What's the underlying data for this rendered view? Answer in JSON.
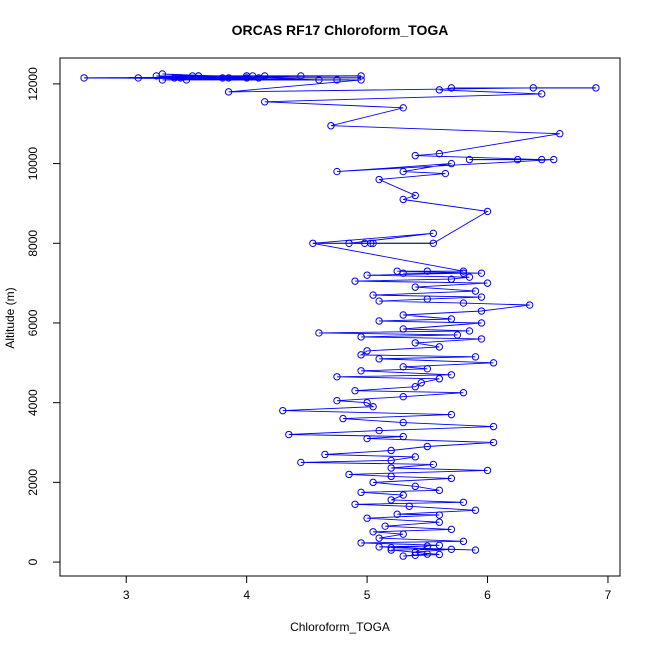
{
  "chart_data": {
    "type": "scatter",
    "title": "ORCAS RF17 Chloroform_TOGA",
    "xlabel": "Chloroform_TOGA",
    "ylabel": "Altitude (m)",
    "xlim": [
      2.45,
      7.1
    ],
    "ylim": [
      -350,
      12650
    ],
    "xticks": [
      3,
      4,
      5,
      6,
      7
    ],
    "yticks": [
      0,
      2000,
      4000,
      6000,
      8000,
      10000,
      12000
    ],
    "series": [
      {
        "name": "Chloroform_TOGA",
        "color": "#0000ff",
        "style": "line+points",
        "x": [
          5.4,
          5.5,
          5.3,
          5.6,
          5.2,
          5.7,
          5.4,
          5.5,
          5.1,
          5.9,
          5.2,
          5.6,
          4.95,
          5.8,
          5.1,
          5.3,
          5.05,
          5.7,
          5.15,
          5.6,
          5.0,
          5.6,
          5.25,
          5.9,
          5.35,
          4.9,
          5.8,
          5.2,
          5.3,
          4.95,
          5.6,
          5.4,
          5.05,
          5.7,
          5.2,
          4.85,
          6.0,
          5.2,
          5.55,
          4.45,
          5.2,
          5.4,
          4.65,
          5.2,
          5.5,
          6.05,
          5.0,
          5.3,
          4.35,
          5.1,
          6.05,
          5.3,
          4.8,
          5.7,
          4.3,
          5.05,
          5.0,
          4.75,
          5.3,
          5.8,
          4.9,
          5.4,
          5.45,
          5.6,
          4.75,
          5.7,
          4.95,
          5.5,
          5.3,
          6.05,
          5.1,
          5.9,
          4.95,
          5.0,
          5.6,
          5.4,
          5.95,
          4.95,
          5.75,
          4.6,
          5.85,
          5.3,
          5.95,
          5.1,
          5.7,
          5.3,
          5.95,
          6.35,
          5.8,
          5.1,
          5.5,
          5.95,
          5.05,
          5.9,
          5.4,
          6.0,
          4.9,
          5.7,
          5.85,
          5.0,
          5.8,
          5.3,
          5.95,
          5.25,
          5.5,
          5.8,
          4.55,
          5.55,
          4.85,
          4.98,
          5.03,
          5.05,
          5.55,
          6.0,
          5.3,
          5.4,
          5.1,
          5.65,
          5.3,
          5.7,
          4.75,
          6.55,
          5.85,
          6.25,
          6.45,
          5.4,
          5.6,
          6.6,
          4.7,
          5.3,
          4.15,
          6.45,
          5.6,
          5.7,
          6.9,
          6.38,
          3.85,
          4.95,
          2.65,
          4.95,
          3.55,
          4.05,
          3.85,
          3.3,
          4.6,
          3.4,
          3.8,
          4.15,
          3.1,
          3.6,
          4.0,
          3.45,
          4.1,
          4.45,
          3.25,
          4.0,
          3.5,
          4.75,
          3.3,
          4.0,
          3.6
        ],
        "y": [
          170,
          200,
          150,
          190,
          300,
          320,
          250,
          400,
          380,
          300,
          360,
          420,
          480,
          520,
          600,
          700,
          760,
          820,
          900,
          1000,
          1100,
          1180,
          1200,
          1300,
          1400,
          1450,
          1500,
          1560,
          1680,
          1750,
          1800,
          1900,
          2000,
          2100,
          2150,
          2200,
          2300,
          2360,
          2450,
          2500,
          2550,
          2640,
          2700,
          2800,
          2900,
          3000,
          3100,
          3150,
          3200,
          3300,
          3400,
          3500,
          3600,
          3700,
          3800,
          3900,
          4000,
          4050,
          4150,
          4250,
          4300,
          4400,
          4500,
          4600,
          4650,
          4700,
          4800,
          4850,
          4900,
          5000,
          5100,
          5150,
          5200,
          5300,
          5400,
          5500,
          5600,
          5650,
          5700,
          5750,
          5800,
          5850,
          6000,
          6050,
          6100,
          6200,
          6300,
          6450,
          6500,
          6550,
          6600,
          6650,
          6700,
          6800,
          6900,
          7000,
          7050,
          7100,
          7150,
          7200,
          7250,
          7250,
          7250,
          7300,
          7300,
          7300,
          8000,
          8250,
          8000,
          8000,
          8000,
          8000,
          8000,
          8800,
          9100,
          9200,
          9600,
          9750,
          9800,
          10000,
          9800,
          10100,
          10100,
          10100,
          10100,
          10200,
          10250,
          10750,
          10950,
          11400,
          11550,
          11750,
          11850,
          11900,
          11900,
          11900,
          11800,
          12100,
          12150,
          12200,
          12200,
          12200,
          12150,
          12250,
          12100,
          12150,
          12150,
          12200,
          12150,
          12200,
          12200,
          12150,
          12150,
          12200,
          12200,
          12150,
          12100,
          12100,
          12100,
          12200,
          12200
        ]
      }
    ],
    "error_bars": [
      {
        "y": 12150,
        "x_from": 2.65,
        "x_to": 4.95
      },
      {
        "y": 12200,
        "x_from": 3.4,
        "x_to": 4.95
      },
      {
        "y": 12100,
        "x_from": 3.85,
        "x_to": 4.85
      },
      {
        "y": 8000,
        "x_from": 4.55,
        "x_to": 5.55
      },
      {
        "y": 10100,
        "x_from": 5.85,
        "x_to": 6.3
      },
      {
        "y": 11900,
        "x_from": 6.35,
        "x_to": 6.9
      }
    ]
  }
}
